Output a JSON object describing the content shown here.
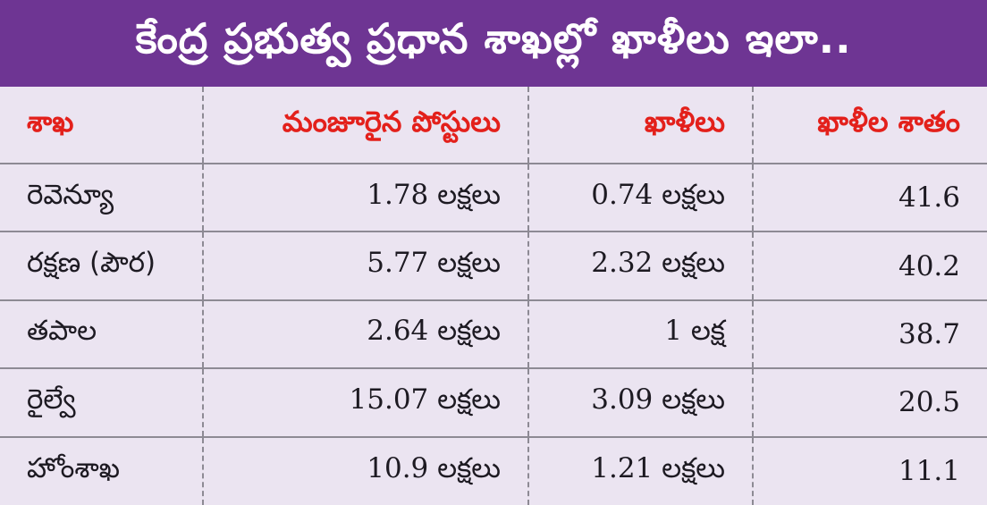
{
  "title": "కేంద్ర ప్రభుత్వ ప్రధాన శాఖల్లో ఖాళీలు ఇలా..",
  "colors": {
    "header_bg": "#6e3593",
    "header_text": "#ffffff",
    "table_bg": "#ebe4f1",
    "column_header_text": "#e3201b",
    "body_text": "#1d1a22"
  },
  "chart_data": {
    "type": "table",
    "title": "కేంద్ర ప్రభుత్వ ప్రధాన శాఖల్లో ఖాళీలు ఇలా..",
    "columns": [
      "శాఖ",
      "మంజూరైన పోస్టులు",
      "ఖాళీలు",
      "ఖాళీల శాతం"
    ],
    "rows": [
      [
        "రెవెన్యూ",
        "1.78 లక్షలు",
        "0.74 లక్షలు",
        "41.6"
      ],
      [
        "రక్షణ (పౌర)",
        "5.77 లక్షలు",
        "2.32 లక్షలు",
        "40.2"
      ],
      [
        "తపాల",
        "2.64 లక్షలు",
        "1 లక్ష",
        "38.7"
      ],
      [
        "రైల్వే",
        "15.07 లక్షలు",
        "3.09 లక్షలు",
        "20.5"
      ],
      [
        "హోంశాఖ",
        "10.9 లక్షలు",
        "1.21 లక్షలు",
        "11.1"
      ]
    ],
    "column_align": [
      "left",
      "right",
      "right",
      "right"
    ]
  }
}
